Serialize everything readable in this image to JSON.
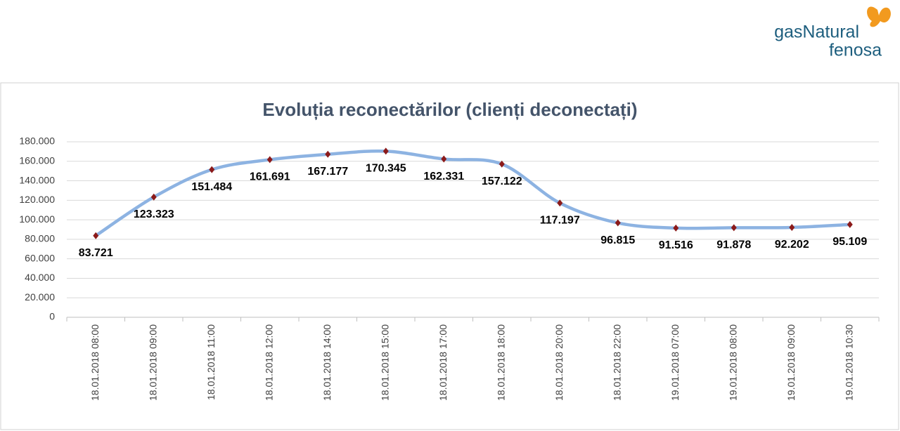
{
  "logo": {
    "line1": "gasNatural",
    "line2": "fenosa"
  },
  "chart_data": {
    "type": "line",
    "title": "Evoluția reconectărilor (clienți deconectați)",
    "categories": [
      "18.01.2018 08:00",
      "18.01.2018 09:00",
      "18.01.2018 11:00",
      "18.01.2018 12:00",
      "18.01.2018 14:00",
      "18.01.2018 15:00",
      "18.01.2018 17:00",
      "18.01.2018 18:00",
      "18.01.2018 20:00",
      "18.01.2018 22:00",
      "19.01.2018 07:00",
      "19.01.2018 08:00",
      "19.01.2018 09:00",
      "19.01.2018 10:30"
    ],
    "series": [
      {
        "name": "Clienți deconectați",
        "color": "#8db3e2",
        "marker_color": "#8b1a1a",
        "values": [
          83721,
          123323,
          151484,
          161691,
          167177,
          170345,
          162331,
          157122,
          117197,
          96815,
          91516,
          91878,
          92202,
          95109
        ],
        "value_labels": [
          "83.721",
          "123.323",
          "151.484",
          "161.691",
          "167.177",
          "170.345",
          "162.331",
          "157.122",
          "117.197",
          "96.815",
          "91.516",
          "91.878",
          "92.202",
          "95.109"
        ]
      }
    ],
    "ylim": [
      0,
      180000
    ],
    "yticks": [
      0,
      {
        "value": 20000,
        "label": "20.000"
      },
      {
        "value": 40000,
        "label": "40.000"
      },
      {
        "value": 60000,
        "label": "60.000"
      },
      {
        "value": 80000,
        "label": "80.000"
      },
      {
        "value": 100000,
        "label": "100.000"
      },
      {
        "value": 120000,
        "label": "120.000"
      },
      {
        "value": 140000,
        "label": "140.000"
      },
      {
        "value": 160000,
        "label": "160.000"
      },
      {
        "value": 180000,
        "label": "180.000"
      }
    ],
    "grid": true
  }
}
